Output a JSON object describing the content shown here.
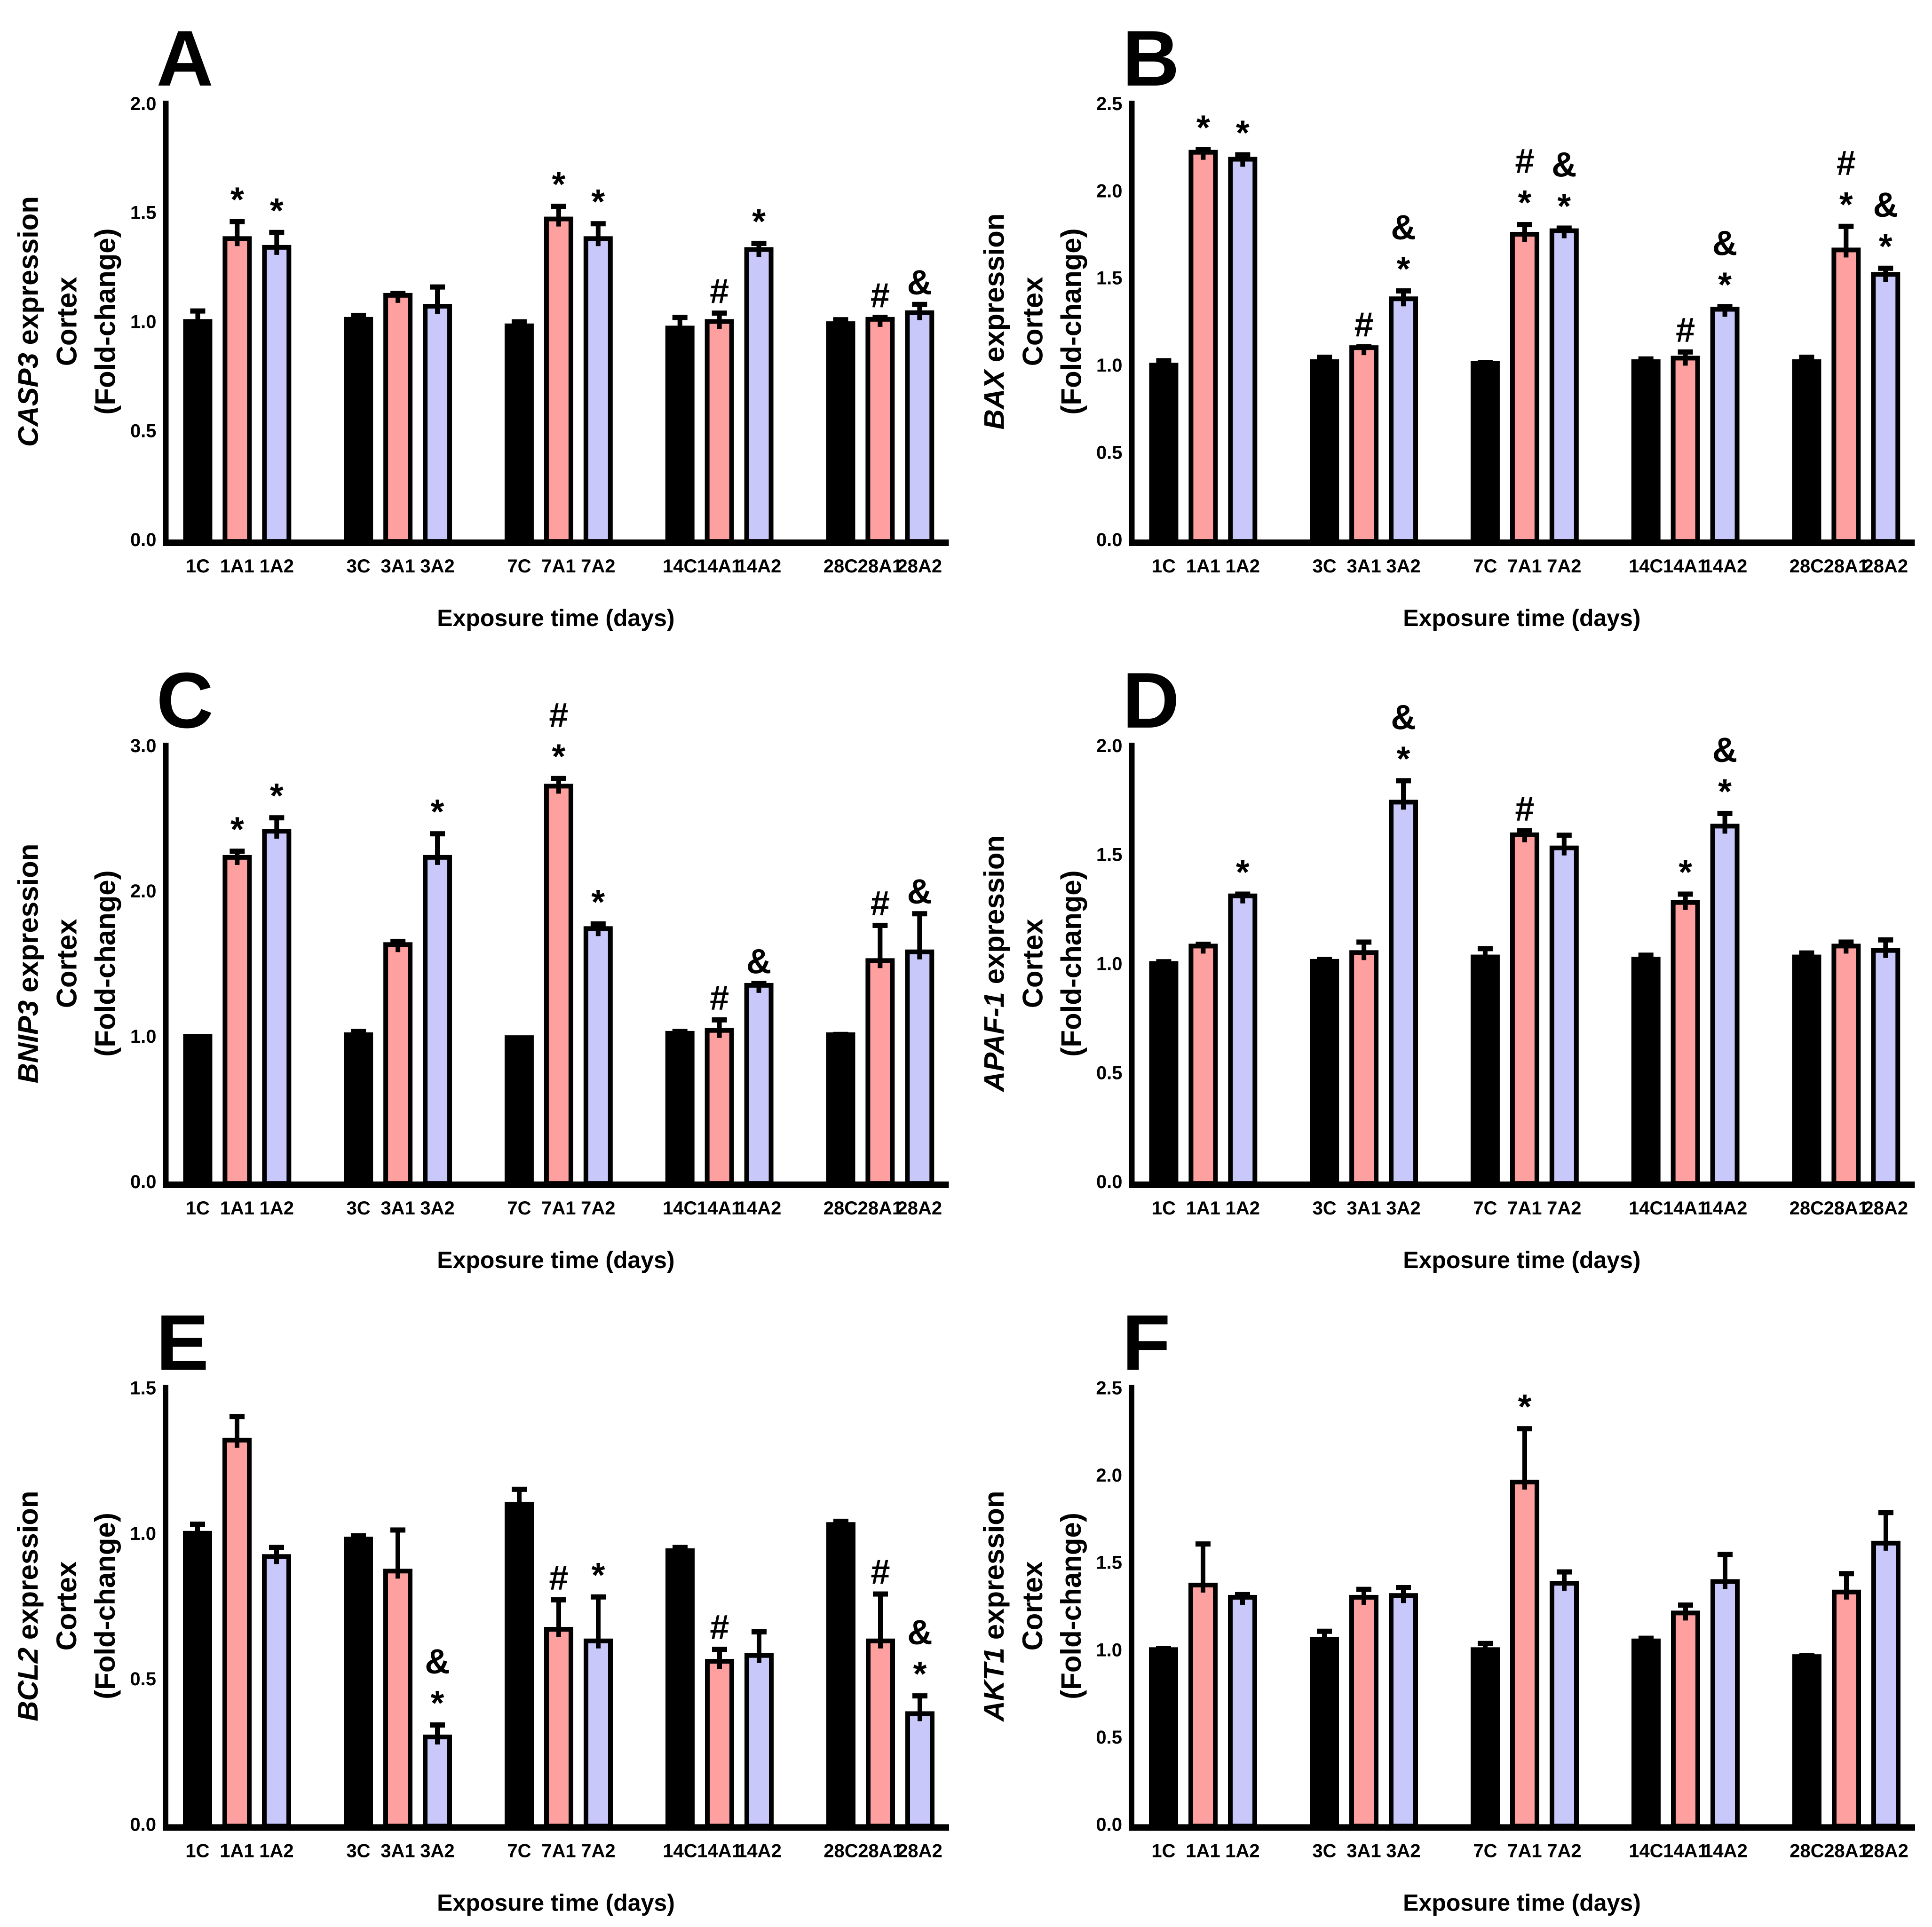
{
  "figure": {
    "xlabel": "Exposure time (days)",
    "colors": {
      "control_bar": "#000000",
      "a1_bar": "#FFA0A0",
      "a2_bar": "#C8C8FA",
      "bar_outline": "#000000",
      "symbol_star": "#000000",
      "symbol_hash": "#FF0000",
      "symbol_amp": "#2020DD",
      "background": "#FFFFFF"
    },
    "symbol_legend_note": "* black asterisk, # red hash, & blue ampersand shown above error bars"
  },
  "chart_data": [
    {
      "type": "bar",
      "panel_letter": "A",
      "gene": "CASP3",
      "ylabel_lines": [
        "CASP3 expression",
        "Cortex",
        "(Fold-change)"
      ],
      "xlabel": "Exposure time (days)",
      "ylim": [
        0.0,
        2.0
      ],
      "yticks": [
        0.0,
        0.5,
        1.0,
        1.5,
        2.0
      ],
      "grid": "off",
      "legend": "none",
      "categories": [
        "1C",
        "1A1",
        "1A2",
        "3C",
        "3A1",
        "3A2",
        "7C",
        "7A1",
        "7A2",
        "14C",
        "14A1",
        "14A2",
        "28C",
        "28A1",
        "28A2"
      ],
      "values": [
        1.0,
        1.38,
        1.34,
        1.01,
        1.12,
        1.07,
        0.98,
        1.47,
        1.38,
        0.97,
        1.0,
        1.33,
        0.99,
        1.01,
        1.04
      ],
      "errors": [
        0.06,
        0.09,
        0.08,
        0.03,
        0.02,
        0.1,
        0.03,
        0.07,
        0.08,
        0.06,
        0.05,
        0.04,
        0.03,
        0.02,
        0.05
      ],
      "symbols": [
        [],
        [
          "*"
        ],
        [
          "*"
        ],
        [],
        [],
        [],
        [],
        [
          "*"
        ],
        [
          "*"
        ],
        [],
        [
          "#"
        ],
        [
          "*"
        ],
        [],
        [
          "#"
        ],
        [
          "&"
        ]
      ]
    },
    {
      "type": "bar",
      "panel_letter": "B",
      "gene": "BAX",
      "ylabel_lines": [
        "BAX expression",
        "Cortex",
        "(Fold-change)"
      ],
      "xlabel": "Exposure time (days)",
      "ylim": [
        0.0,
        2.5
      ],
      "yticks": [
        0.0,
        0.5,
        1.0,
        1.5,
        2.0,
        2.5
      ],
      "grid": "off",
      "legend": "none",
      "categories": [
        "1C",
        "1A1",
        "1A2",
        "3C",
        "3A1",
        "3A2",
        "7C",
        "7A1",
        "7A2",
        "14C",
        "14A1",
        "14A2",
        "28C",
        "28A1",
        "28A2"
      ],
      "values": [
        1.0,
        2.22,
        2.18,
        1.02,
        1.1,
        1.38,
        1.01,
        1.75,
        1.77,
        1.02,
        1.04,
        1.32,
        1.02,
        1.66,
        1.52
      ],
      "errors": [
        0.04,
        0.03,
        0.04,
        0.04,
        0.02,
        0.06,
        0.02,
        0.07,
        0.03,
        0.03,
        0.05,
        0.03,
        0.04,
        0.15,
        0.05
      ],
      "symbols": [
        [],
        [
          "*"
        ],
        [
          "*"
        ],
        [],
        [
          "#"
        ],
        [
          "*",
          "&"
        ],
        [],
        [
          "*",
          "#"
        ],
        [
          "*",
          "&"
        ],
        [],
        [
          "#"
        ],
        [
          "*",
          "&"
        ],
        [],
        [
          "*",
          "#"
        ],
        [
          "*",
          "&"
        ]
      ]
    },
    {
      "type": "bar",
      "panel_letter": "C",
      "gene": "BNIP3",
      "ylabel_lines": [
        "BNIP3 expression",
        "Cortex",
        "(Fold-change)"
      ],
      "xlabel": "Exposure time (days)",
      "ylim": [
        0.0,
        3.0
      ],
      "yticks": [
        0.0,
        1.0,
        2.0,
        3.0
      ],
      "grid": "off",
      "legend": "none",
      "categories": [
        "1C",
        "1A1",
        "1A2",
        "3C",
        "3A1",
        "3A2",
        "7C",
        "7A1",
        "7A2",
        "14C",
        "14A1",
        "14A2",
        "28C",
        "28A1",
        "28A2"
      ],
      "values": [
        1.0,
        2.23,
        2.41,
        1.01,
        1.63,
        2.23,
        0.99,
        2.72,
        1.74,
        1.02,
        1.04,
        1.35,
        1.01,
        1.52,
        1.58
      ],
      "errors": [
        0.01,
        0.06,
        0.11,
        0.04,
        0.04,
        0.18,
        0.01,
        0.07,
        0.05,
        0.03,
        0.09,
        0.03,
        0.02,
        0.26,
        0.28
      ],
      "symbols": [
        [],
        [
          "*"
        ],
        [
          "*"
        ],
        [],
        [],
        [
          "*"
        ],
        [],
        [
          "*",
          "#"
        ],
        [
          "*"
        ],
        [],
        [
          "#"
        ],
        [
          "&"
        ],
        [],
        [
          "#"
        ],
        [
          "&"
        ]
      ]
    },
    {
      "type": "bar",
      "panel_letter": "D",
      "gene": "APAF-1",
      "ylabel_lines": [
        "APAF-1 expression",
        "Cortex",
        "(Fold-change)"
      ],
      "xlabel": "Exposure time (days)",
      "ylim": [
        0.0,
        2.0
      ],
      "yticks": [
        0.0,
        0.5,
        1.0,
        1.5,
        2.0
      ],
      "grid": "off",
      "legend": "none",
      "categories": [
        "1C",
        "1A1",
        "1A2",
        "3C",
        "3A1",
        "3A2",
        "7C",
        "7A1",
        "7A2",
        "14C",
        "14A1",
        "14A2",
        "28C",
        "28A1",
        "28A2"
      ],
      "values": [
        1.0,
        1.08,
        1.31,
        1.01,
        1.05,
        1.74,
        1.03,
        1.59,
        1.53,
        1.02,
        1.28,
        1.63,
        1.03,
        1.08,
        1.06
      ],
      "errors": [
        0.02,
        0.02,
        0.02,
        0.02,
        0.06,
        0.11,
        0.05,
        0.03,
        0.07,
        0.03,
        0.05,
        0.07,
        0.03,
        0.03,
        0.06
      ],
      "symbols": [
        [],
        [],
        [
          "*"
        ],
        [],
        [],
        [
          "*",
          "&"
        ],
        [],
        [
          "#"
        ],
        [],
        [],
        [
          "*"
        ],
        [
          "*",
          "&"
        ],
        [],
        [],
        []
      ]
    },
    {
      "type": "bar",
      "panel_letter": "E",
      "gene": "BCL2",
      "ylabel_lines": [
        "BCL2 expression",
        "Cortex",
        "(Fold-change)"
      ],
      "xlabel": "Exposure time (days)",
      "ylim": [
        0.0,
        1.5
      ],
      "yticks": [
        0.0,
        0.5,
        1.0,
        1.5
      ],
      "grid": "off",
      "legend": "none",
      "categories": [
        "1C",
        "1A1",
        "1A2",
        "3C",
        "3A1",
        "3A2",
        "7C",
        "7A1",
        "7A2",
        "14C",
        "14A1",
        "14A2",
        "28C",
        "28A1",
        "28A2"
      ],
      "values": [
        1.0,
        1.32,
        0.92,
        0.98,
        0.87,
        0.3,
        1.1,
        0.67,
        0.63,
        0.94,
        0.56,
        0.58,
        1.03,
        0.63,
        0.38
      ],
      "errors": [
        0.04,
        0.09,
        0.04,
        0.02,
        0.15,
        0.05,
        0.06,
        0.11,
        0.16,
        0.02,
        0.05,
        0.09,
        0.02,
        0.17,
        0.07
      ],
      "symbols": [
        [],
        [],
        [],
        [],
        [],
        [
          "*",
          "&"
        ],
        [],
        [
          "#"
        ],
        [
          "*"
        ],
        [],
        [
          "#"
        ],
        [],
        [],
        [
          "#"
        ],
        [
          "*",
          "&"
        ]
      ]
    },
    {
      "type": "bar",
      "panel_letter": "F",
      "gene": "AKT1",
      "ylabel_lines": [
        "AKT1 expression",
        "Cortex",
        "(Fold-change)"
      ],
      "xlabel": "Exposure time (days)",
      "ylim": [
        0.0,
        2.5
      ],
      "yticks": [
        0.0,
        0.5,
        1.0,
        1.5,
        2.0,
        2.5
      ],
      "grid": "off",
      "legend": "none",
      "categories": [
        "1C",
        "1A1",
        "1A2",
        "3C",
        "3A1",
        "3A2",
        "7C",
        "7A1",
        "7A2",
        "14C",
        "14A1",
        "14A2",
        "28C",
        "28A1",
        "28A2"
      ],
      "values": [
        1.0,
        1.37,
        1.3,
        1.06,
        1.3,
        1.31,
        1.0,
        1.96,
        1.38,
        1.05,
        1.21,
        1.39,
        0.96,
        1.33,
        1.61
      ],
      "errors": [
        0.02,
        0.25,
        0.03,
        0.06,
        0.06,
        0.06,
        0.05,
        0.32,
        0.08,
        0.03,
        0.06,
        0.17,
        0.02,
        0.12,
        0.19
      ],
      "symbols": [
        [],
        [],
        [],
        [],
        [],
        [],
        [],
        [
          "*"
        ],
        [],
        [],
        [],
        [],
        [],
        [],
        []
      ]
    }
  ]
}
